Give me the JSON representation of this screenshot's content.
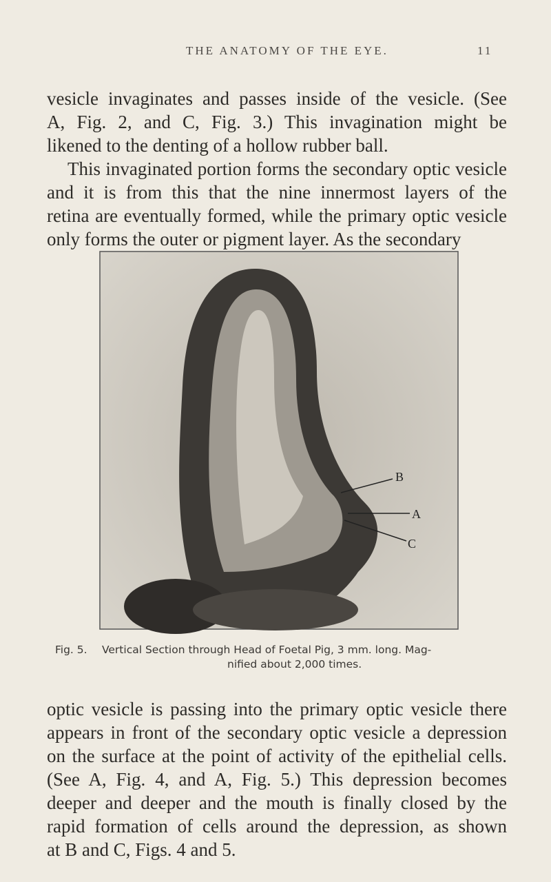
{
  "header": {
    "title": "THE ANATOMY OF THE EYE.",
    "page_number": "11"
  },
  "paragraphs": [
    {
      "lines": [
        "vesicle invaginates and passes inside of the vesicle. (See",
        "A, Fig. 2, and C, Fig. 3.) This invagination might be",
        "likened to the denting of a hollow rubber ball."
      ]
    },
    {
      "lines": [
        "This invaginated portion forms the secondary optic vesicle",
        "and it is from this that the nine innermost layers of the",
        "retina are eventually formed, while the primary optic vesicle",
        "only forms the outer or pigment layer. As the secondary"
      ]
    }
  ],
  "figure": {
    "labels": [
      "B",
      "A",
      "C"
    ],
    "caption": {
      "number": "Fig. 5.",
      "lines": [
        "Vertical Section through Head of Foetal Pig, 3 mm. long. Mag-",
        "nified about 2,000 times."
      ]
    }
  },
  "paragraphs_after": [
    {
      "lines": [
        "optic vesicle is passing into the primary optic vesicle there",
        "appears in front of the secondary optic vesicle a depression",
        "on the surface at the point of activity of the epithelial cells.",
        "(See A, Fig. 4, and A, Fig. 5.) This depression becomes",
        "deeper and deeper and the mouth is finally closed by the",
        "rapid formation of cells around the depression, as shown",
        "at B and C, Figs. 4 and 5."
      ]
    }
  ]
}
